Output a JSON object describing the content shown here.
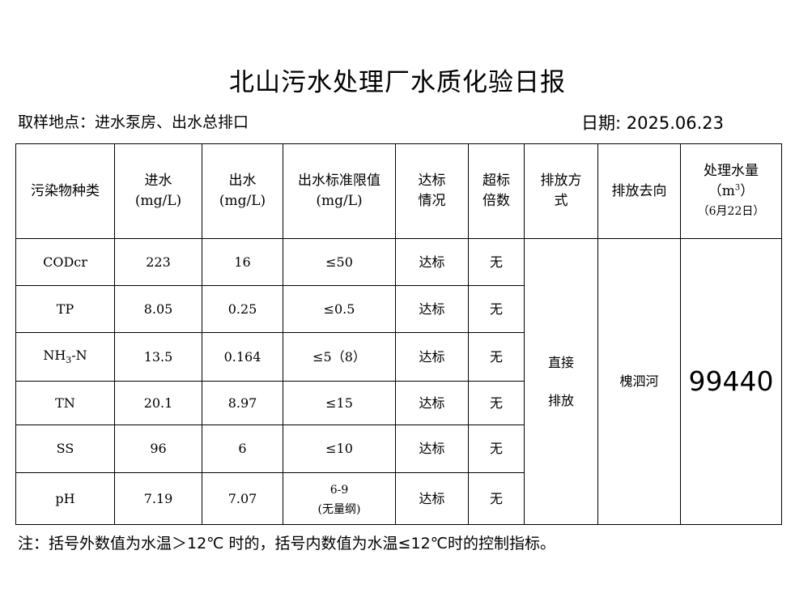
{
  "title": "北山污水处理厂水质化验日报",
  "location": "取样地点：进水泵房、出水总排口",
  "date": "日期: 2025.06.23",
  "headers": {
    "pollutant": "污染物种类",
    "inflow": "进水",
    "inflow_unit": "(mg/L)",
    "outflow": "出水",
    "outflow_unit": "(mg/L)",
    "limit": "出水标准限值",
    "limit_unit": "(mg/L)",
    "status_1": "达标",
    "status_2": "情况",
    "exceed_1": "超标",
    "exceed_2": "倍数",
    "discharge_1": "排放方",
    "discharge_2": "式",
    "direction": "排放去向",
    "volume": "处理水量",
    "volume_unit_pre": "（m",
    "volume_unit_sup": "3",
    "volume_unit_post": "）",
    "volume_date": "（6月22日）"
  },
  "rows": [
    {
      "name": "CODcr",
      "inflow": "223",
      "outflow": "16",
      "limit": "≤50",
      "status": "达标",
      "exceed": "无"
    },
    {
      "name": "TP",
      "inflow": "8.05",
      "outflow": "0.25",
      "limit": "≤0.5",
      "status": "达标",
      "exceed": "无"
    },
    {
      "name_main": "NH",
      "name_sub": "3",
      "name_tail": "-N",
      "inflow": "13.5",
      "outflow": "0.164",
      "limit": "≤5（8）",
      "status": "达标",
      "exceed": "无"
    },
    {
      "name": "TN",
      "inflow": "20.1",
      "outflow": "8.97",
      "limit": "≤15",
      "status": "达标",
      "exceed": "无"
    },
    {
      "name": "SS",
      "inflow": "96",
      "outflow": "6",
      "limit": "≤10",
      "status": "达标",
      "exceed": "无"
    },
    {
      "name": "pH",
      "inflow": "7.19",
      "outflow": "7.07",
      "limit": "6-9",
      "limit_note": "(无量纲)",
      "status": "达标",
      "exceed": "无"
    }
  ],
  "discharge_method_1": "直接",
  "discharge_method_2": "排放",
  "discharge_direction": "槐泗河",
  "treated_volume": "99440",
  "note": "注：括号外数值为水温＞12℃ 时的，括号内数值为水温≤12℃时的控制指标。"
}
